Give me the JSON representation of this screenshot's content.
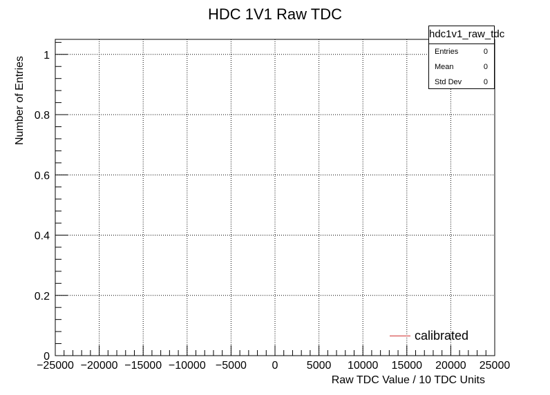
{
  "chart_data": {
    "type": "line",
    "title": "HDC 1V1 Raw TDC",
    "xlabel": "Raw TDC Value / 10 TDC Units",
    "ylabel": "Number of Entries",
    "xlim": [
      -25000,
      25000
    ],
    "ylim": [
      0,
      1.05
    ],
    "x_ticks": [
      -25000,
      -20000,
      -15000,
      -10000,
      -5000,
      0,
      5000,
      10000,
      15000,
      20000,
      25000
    ],
    "x_tick_labels": [
      "−25000",
      "−20000",
      "−15000",
      "−10000",
      "−5000",
      "0",
      "5000",
      "10000",
      "15000",
      "20000",
      "25000"
    ],
    "y_ticks": [
      0,
      0.2,
      0.4,
      0.6,
      0.8,
      1
    ],
    "y_tick_labels": [
      "0",
      "0.2",
      "0.4",
      "0.6",
      "0.8",
      "1"
    ],
    "grid": true,
    "series": [
      {
        "name": "calibrated",
        "color": "#d03030",
        "x": [],
        "y": []
      }
    ],
    "legend_position": "bottom-right",
    "stats_box": {
      "title": "hdc1v1_raw_tdc",
      "rows": [
        {
          "label": "Entries",
          "value": "0"
        },
        {
          "label": "Mean",
          "value": "0"
        },
        {
          "label": "Std Dev",
          "value": "0"
        }
      ]
    }
  }
}
